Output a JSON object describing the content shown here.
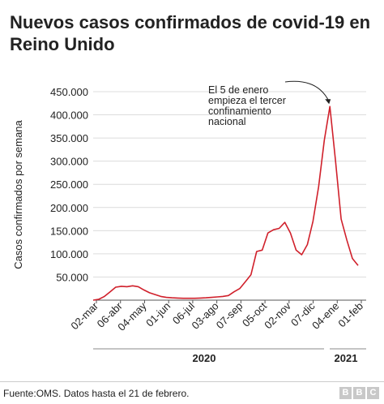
{
  "title": "Nuevos casos confirmados de covid-19 en Reino Unido",
  "footer": {
    "source": "Fuente:OMS. Datos hasta el 21 de febrero.",
    "logo_letters": [
      "B",
      "B",
      "C"
    ]
  },
  "colors": {
    "line": "#d0202b",
    "grid": "#dcdcdc",
    "axis": "#555555"
  },
  "chart_data": {
    "type": "line",
    "title": "Nuevos casos confirmados de covid-19 en Reino Unido",
    "xlabel": "",
    "ylabel": "Casos confirmados por semana",
    "ylim": [
      0,
      450000
    ],
    "yticks": [
      50000,
      100000,
      150000,
      200000,
      250000,
      300000,
      350000,
      400000,
      450000
    ],
    "ytick_labels": [
      "50.000",
      "100.000",
      "150.000",
      "200.000",
      "250.000",
      "300.000",
      "350.000",
      "400.000",
      "450.000"
    ],
    "xtick_labels": [
      "02-mar",
      "06-abr",
      "04-may",
      "01-jun",
      "06-jul",
      "03-ago",
      "07-sep",
      "05-oct",
      "02-nov",
      "07-dic",
      "04-ene",
      "01-feb"
    ],
    "year_labels": [
      "2020",
      "2021"
    ],
    "grid": true,
    "series": [
      {
        "values": [
          0,
          2000,
          8000,
          18000,
          28000,
          30000,
          29000,
          31000,
          29000,
          22000,
          16000,
          12000,
          8000,
          6000,
          5000,
          4500,
          4000,
          4000,
          4000,
          4500,
          5000,
          6000,
          7000,
          8000,
          10000,
          18000,
          25000,
          40000,
          55000,
          105000,
          108000,
          145000,
          152000,
          155000,
          168000,
          145000,
          108000,
          98000,
          120000,
          170000,
          245000,
          345000,
          418000,
          300000,
          175000,
          130000,
          90000,
          75000
        ]
      }
    ],
    "annotation": {
      "lines": [
        "El 5 de enero",
        "empieza el tercer",
        "confinamiento",
        "nacional"
      ],
      "target_index": 42
    }
  }
}
